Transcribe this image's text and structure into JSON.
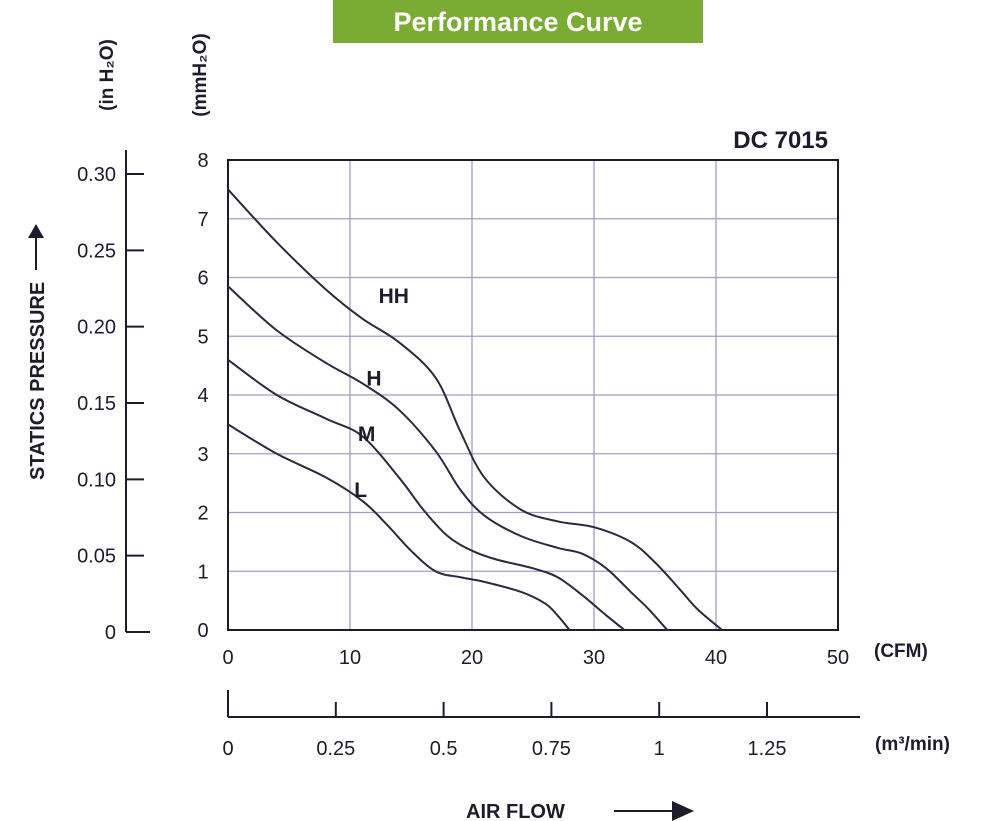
{
  "banner": {
    "title": "Performance Curve",
    "color": "#7aab33"
  },
  "chart_data": {
    "type": "line",
    "model": "DC 7015",
    "ylabel": "STATICS PRESSURE",
    "xlabel": "AIR FLOW",
    "x_unit": "(CFM)",
    "x2_unit": "(m³/min)",
    "y_unit": "(mmH₂O)",
    "y2_unit": "(in H₂O)",
    "xlim": [
      0,
      50
    ],
    "ylim": [
      0,
      8
    ],
    "x_ticks": [
      "0",
      "10",
      "20",
      "30",
      "40",
      "50"
    ],
    "y_ticks": [
      "0",
      "1",
      "2",
      "3",
      "4",
      "5",
      "6",
      "7",
      "8"
    ],
    "x2_ticks": [
      "0",
      "0.25",
      "0.5",
      "0.75",
      "1",
      "1.25"
    ],
    "y2_ticks": [
      "0",
      "0.05",
      "0.10",
      "0.15",
      "0.20",
      "0.25",
      "0.30"
    ],
    "grid": true,
    "series": [
      {
        "name": "HH",
        "x": [
          0,
          4,
          8,
          11,
          14,
          17,
          19,
          21,
          24,
          27,
          30,
          33,
          35,
          37,
          38.5,
          40.5
        ],
        "y": [
          7.5,
          6.6,
          5.8,
          5.3,
          4.9,
          4.3,
          3.4,
          2.6,
          2.05,
          1.85,
          1.75,
          1.5,
          1.15,
          0.7,
          0.35,
          0
        ]
      },
      {
        "name": "H",
        "x": [
          0,
          4,
          8,
          11,
          14,
          17,
          19,
          21,
          24,
          27,
          29,
          31,
          33,
          34.5,
          36
        ],
        "y": [
          5.85,
          5.1,
          4.55,
          4.2,
          3.75,
          3.05,
          2.4,
          1.95,
          1.6,
          1.4,
          1.3,
          1.05,
          0.65,
          0.35,
          0
        ]
      },
      {
        "name": "M",
        "x": [
          0,
          4,
          8,
          11,
          14,
          16,
          18,
          20,
          22,
          25,
          27,
          29,
          31,
          32.5
        ],
        "y": [
          4.6,
          4.0,
          3.6,
          3.3,
          2.6,
          2.05,
          1.6,
          1.35,
          1.2,
          1.05,
          0.9,
          0.6,
          0.25,
          0
        ]
      },
      {
        "name": "L",
        "x": [
          0,
          4,
          8,
          11,
          13,
          15,
          17,
          19,
          21,
          24,
          26,
          27,
          28
        ],
        "y": [
          3.5,
          3.0,
          2.6,
          2.2,
          1.8,
          1.35,
          1.0,
          0.9,
          0.82,
          0.65,
          0.45,
          0.25,
          0
        ]
      }
    ]
  }
}
